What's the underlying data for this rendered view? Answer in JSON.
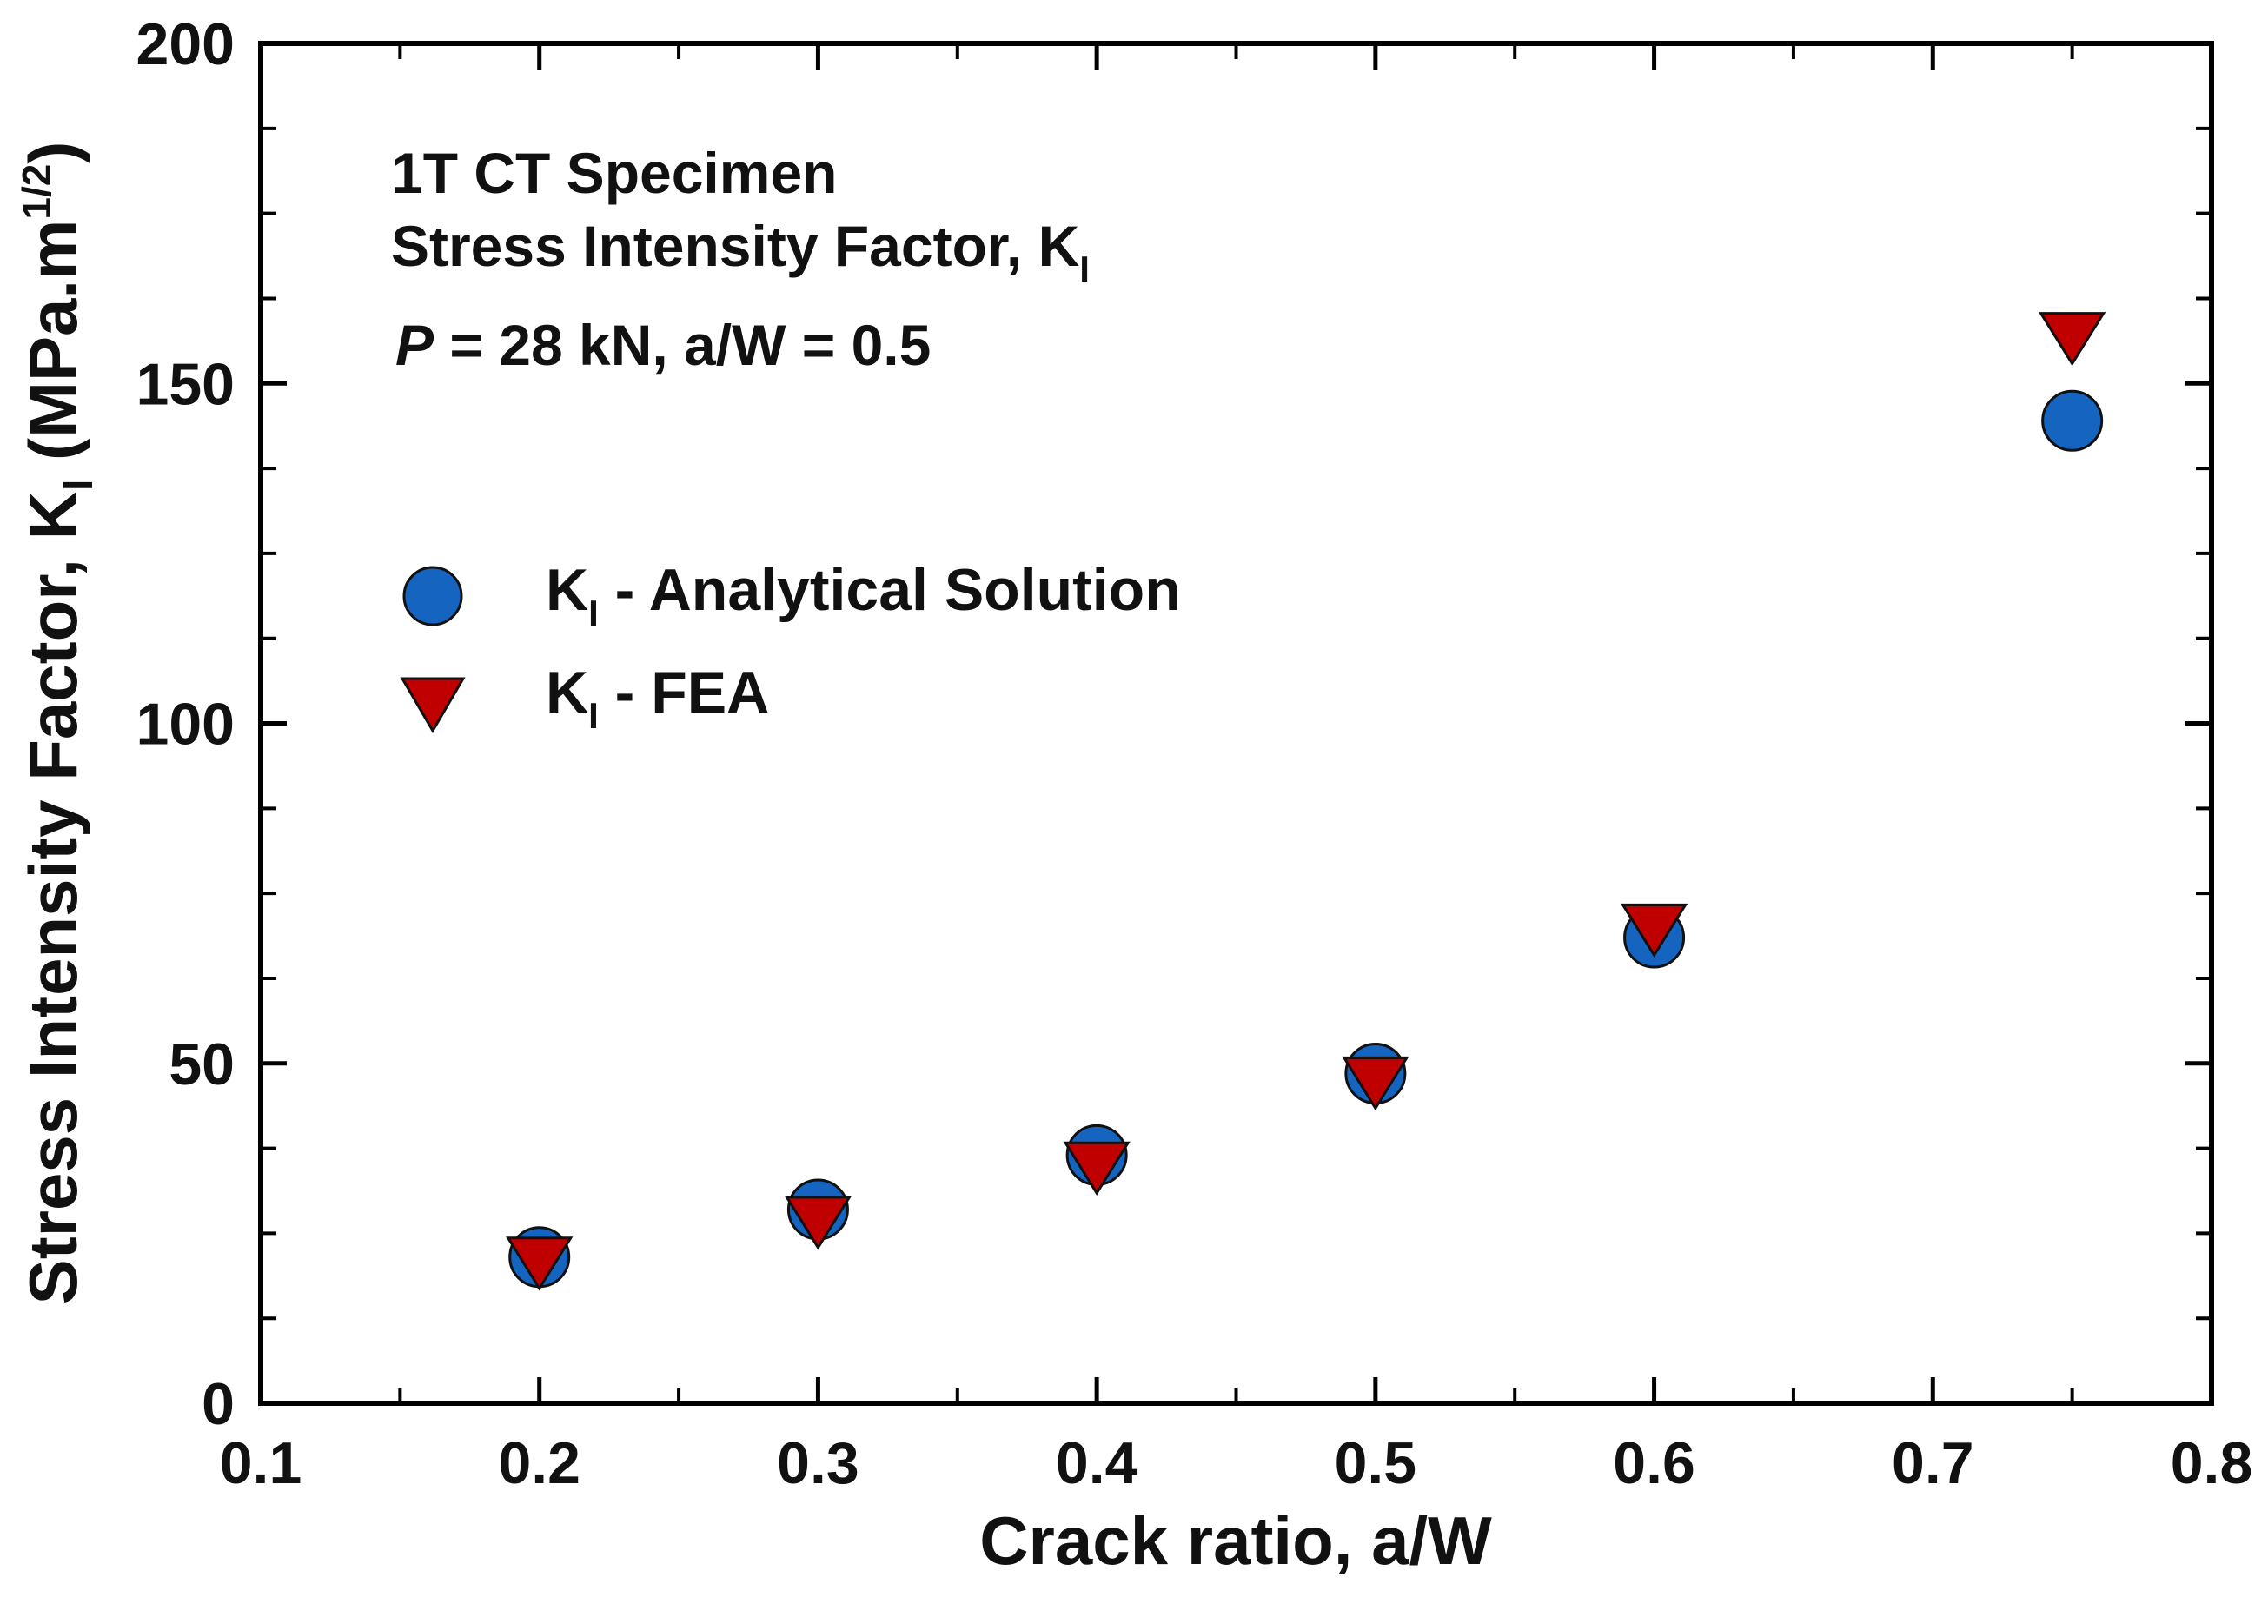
{
  "chart_data": {
    "type": "scatter",
    "xlabel": "Crack ratio, a/W",
    "ylabel": {
      "main": "Stress Intensity Factor, K",
      "sub": "I",
      "unit_open": " (MPa.m",
      "unit_sup": "1/2",
      "unit_close": ")"
    },
    "xlim": [
      0.1,
      0.8
    ],
    "ylim": [
      0,
      200
    ],
    "xticks": [
      "0.1",
      "0.2",
      "0.3",
      "0.4",
      "0.5",
      "0.6",
      "0.7",
      "0.8"
    ],
    "yticks": [
      "0",
      "50",
      "100",
      "150",
      "200"
    ],
    "annotation": {
      "line1": "1T CT Specimen",
      "line2_main": "Stress Intensity Factor, K",
      "line2_sub": "I",
      "line3_p": "P",
      "line3_rest": " = 28 kN, a/W = 0.5"
    },
    "legend_position": "upper-left",
    "series": [
      {
        "name": "KI - Analytical Solution",
        "label_main": "K",
        "label_sub": "I",
        "label_rest": " - Analytical Solution",
        "marker": "circle",
        "color": "#1565C0",
        "x": [
          0.2,
          0.3,
          0.4,
          0.5,
          0.6,
          0.75
        ],
        "y": [
          21.5,
          28.5,
          36.5,
          48.5,
          68.5,
          144.5
        ]
      },
      {
        "name": "KI - FEA",
        "label_main": "K",
        "label_sub": "I",
        "label_rest": " - FEA",
        "marker": "triangle-down",
        "color": "#C00000",
        "x": [
          0.2,
          0.3,
          0.4,
          0.5,
          0.6,
          0.75
        ],
        "y": [
          21.5,
          27.5,
          35.5,
          48.0,
          70.5,
          157.5
        ]
      }
    ]
  }
}
